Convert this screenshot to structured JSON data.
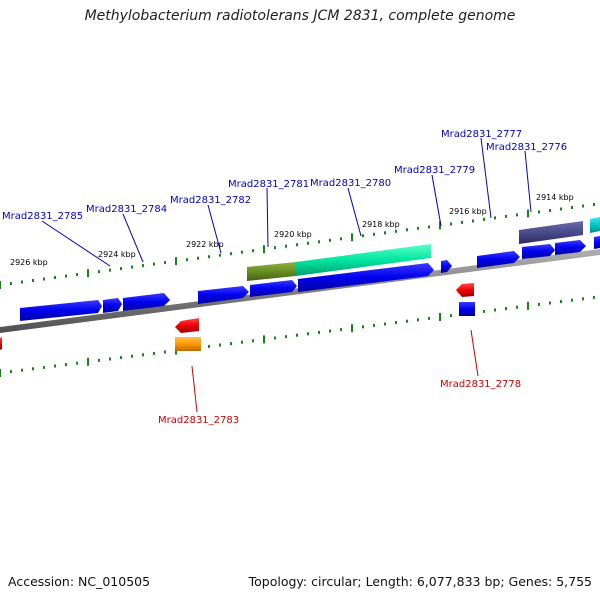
{
  "title": "Methylobacterium radiotolerans JCM 2831, complete genome",
  "footer": {
    "accession": "Accession: NC_010505",
    "summary": "Topology: circular; Length: 6,077,833 bp; Genes: 5,755"
  },
  "colors": {
    "forward_gene": "#0000ee",
    "reverse_gene": "#ee0000",
    "forward_label": "#0000cc",
    "reverse_label": "#cc0000",
    "tick": "#118811",
    "olive": "#6b8e23",
    "spring_green": "#00e6a0",
    "slate_blue": "#4a4a8c",
    "cyan": "#00c8c8",
    "orange": "#ff9a00",
    "backbone": "#808080"
  },
  "kbp_labels": [
    "2926 kbp",
    "2924 kbp",
    "2922 kbp",
    "2920 kbp",
    "2918 kbp",
    "2916 kbp",
    "2914 kbp"
  ],
  "gene_labels": [
    "Mrad2831_2785",
    "Mrad2831_2784",
    "Mrad2831_2782",
    "Mrad2831_2781",
    "Mrad2831_2780",
    "Mrad2831_2779",
    "Mrad2831_2777",
    "Mrad2831_2776",
    "Mrad2831_2783",
    "Mrad2831_2778"
  ]
}
